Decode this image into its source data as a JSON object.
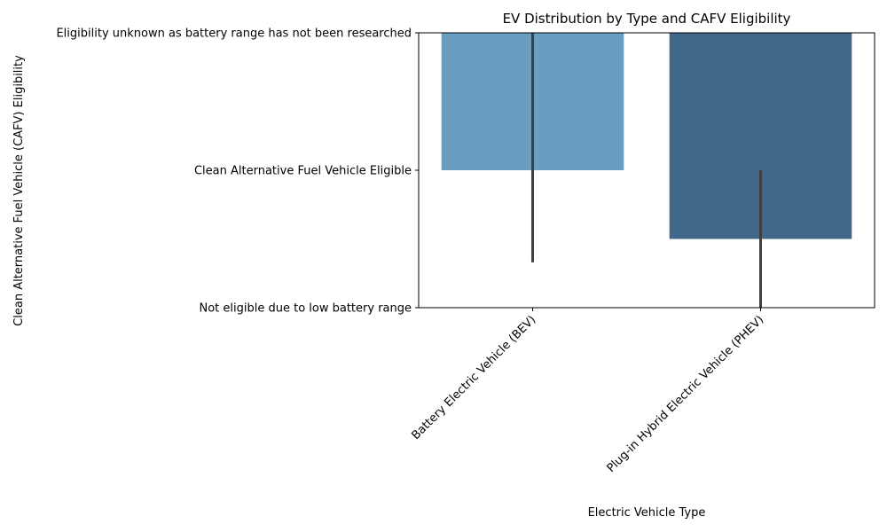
{
  "chart_data": {
    "type": "bar",
    "title": "EV Distribution by Type and CAFV Eligibility",
    "xlabel": "Electric Vehicle Type",
    "ylabel": "Clean Alternative Fuel Vehicle (CAFV) Eligibility",
    "categories": [
      "Battery Electric Vehicle (BEV)",
      "Plug-in Hybrid Electric Vehicle (PHEV)"
    ],
    "y_categories": [
      "Eligibility unknown as battery range has not been researched",
      "Clean Alternative Fuel Vehicle Eligible",
      "Not eligible due to low battery range"
    ],
    "values": [
      1.0,
      1.5
    ],
    "error_bars": [
      [
        0.0,
        1.67
      ],
      [
        1.0,
        2.0
      ]
    ],
    "ylim": [
      0,
      2
    ],
    "y_inverted": true,
    "colors": [
      "#6a9ec0",
      "#416888"
    ],
    "errorbar_color": "#404040",
    "grid": false,
    "legend": "none"
  }
}
